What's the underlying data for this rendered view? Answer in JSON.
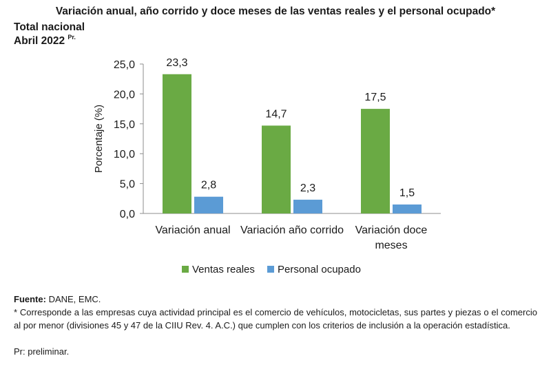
{
  "header": {
    "title": "Variación anual, año corrido y doce meses de las ventas reales y el personal ocupado*",
    "subtitle_line1": "Total nacional",
    "subtitle_line2": "Abril 2022",
    "subtitle_sup": "Pr."
  },
  "chart_data": {
    "type": "bar",
    "categories": [
      [
        "Variación anual"
      ],
      [
        "Variación año corrido"
      ],
      [
        "Variación doce",
        "meses"
      ]
    ],
    "series": [
      {
        "name": "Ventas reales",
        "values": [
          23.3,
          14.7,
          17.5
        ],
        "labels": [
          "23,3",
          "14,7",
          "17,5"
        ],
        "color": "#6aaa44"
      },
      {
        "name": "Personal ocupado",
        "values": [
          2.8,
          2.3,
          1.5
        ],
        "labels": [
          "2,8",
          "2,3",
          "1,5"
        ],
        "color": "#5b9bd5"
      }
    ],
    "ylabel": "Porcentaje (%)",
    "ylim": [
      0,
      25
    ],
    "yticks": [
      "0,0",
      "5,0",
      "10,0",
      "15,0",
      "20,0",
      "25,0"
    ],
    "ytick_values": [
      0,
      5,
      10,
      15,
      20,
      25
    ],
    "grid": false,
    "legend": "bottom"
  },
  "footer": {
    "source_label": "Fuente:",
    "source_text": " DANE, EMC.",
    "note": "* Corresponde a las empresas cuya actividad principal es el comercio de vehículos, motocicletas, sus partes y piezas o el comercio al por menor (divisiones 45 y 47 de la CIIU Rev. 4. A.C.) que cumplen con los criterios de inclusión a la operación estadística.",
    "pr_note": "Pr: preliminar."
  }
}
